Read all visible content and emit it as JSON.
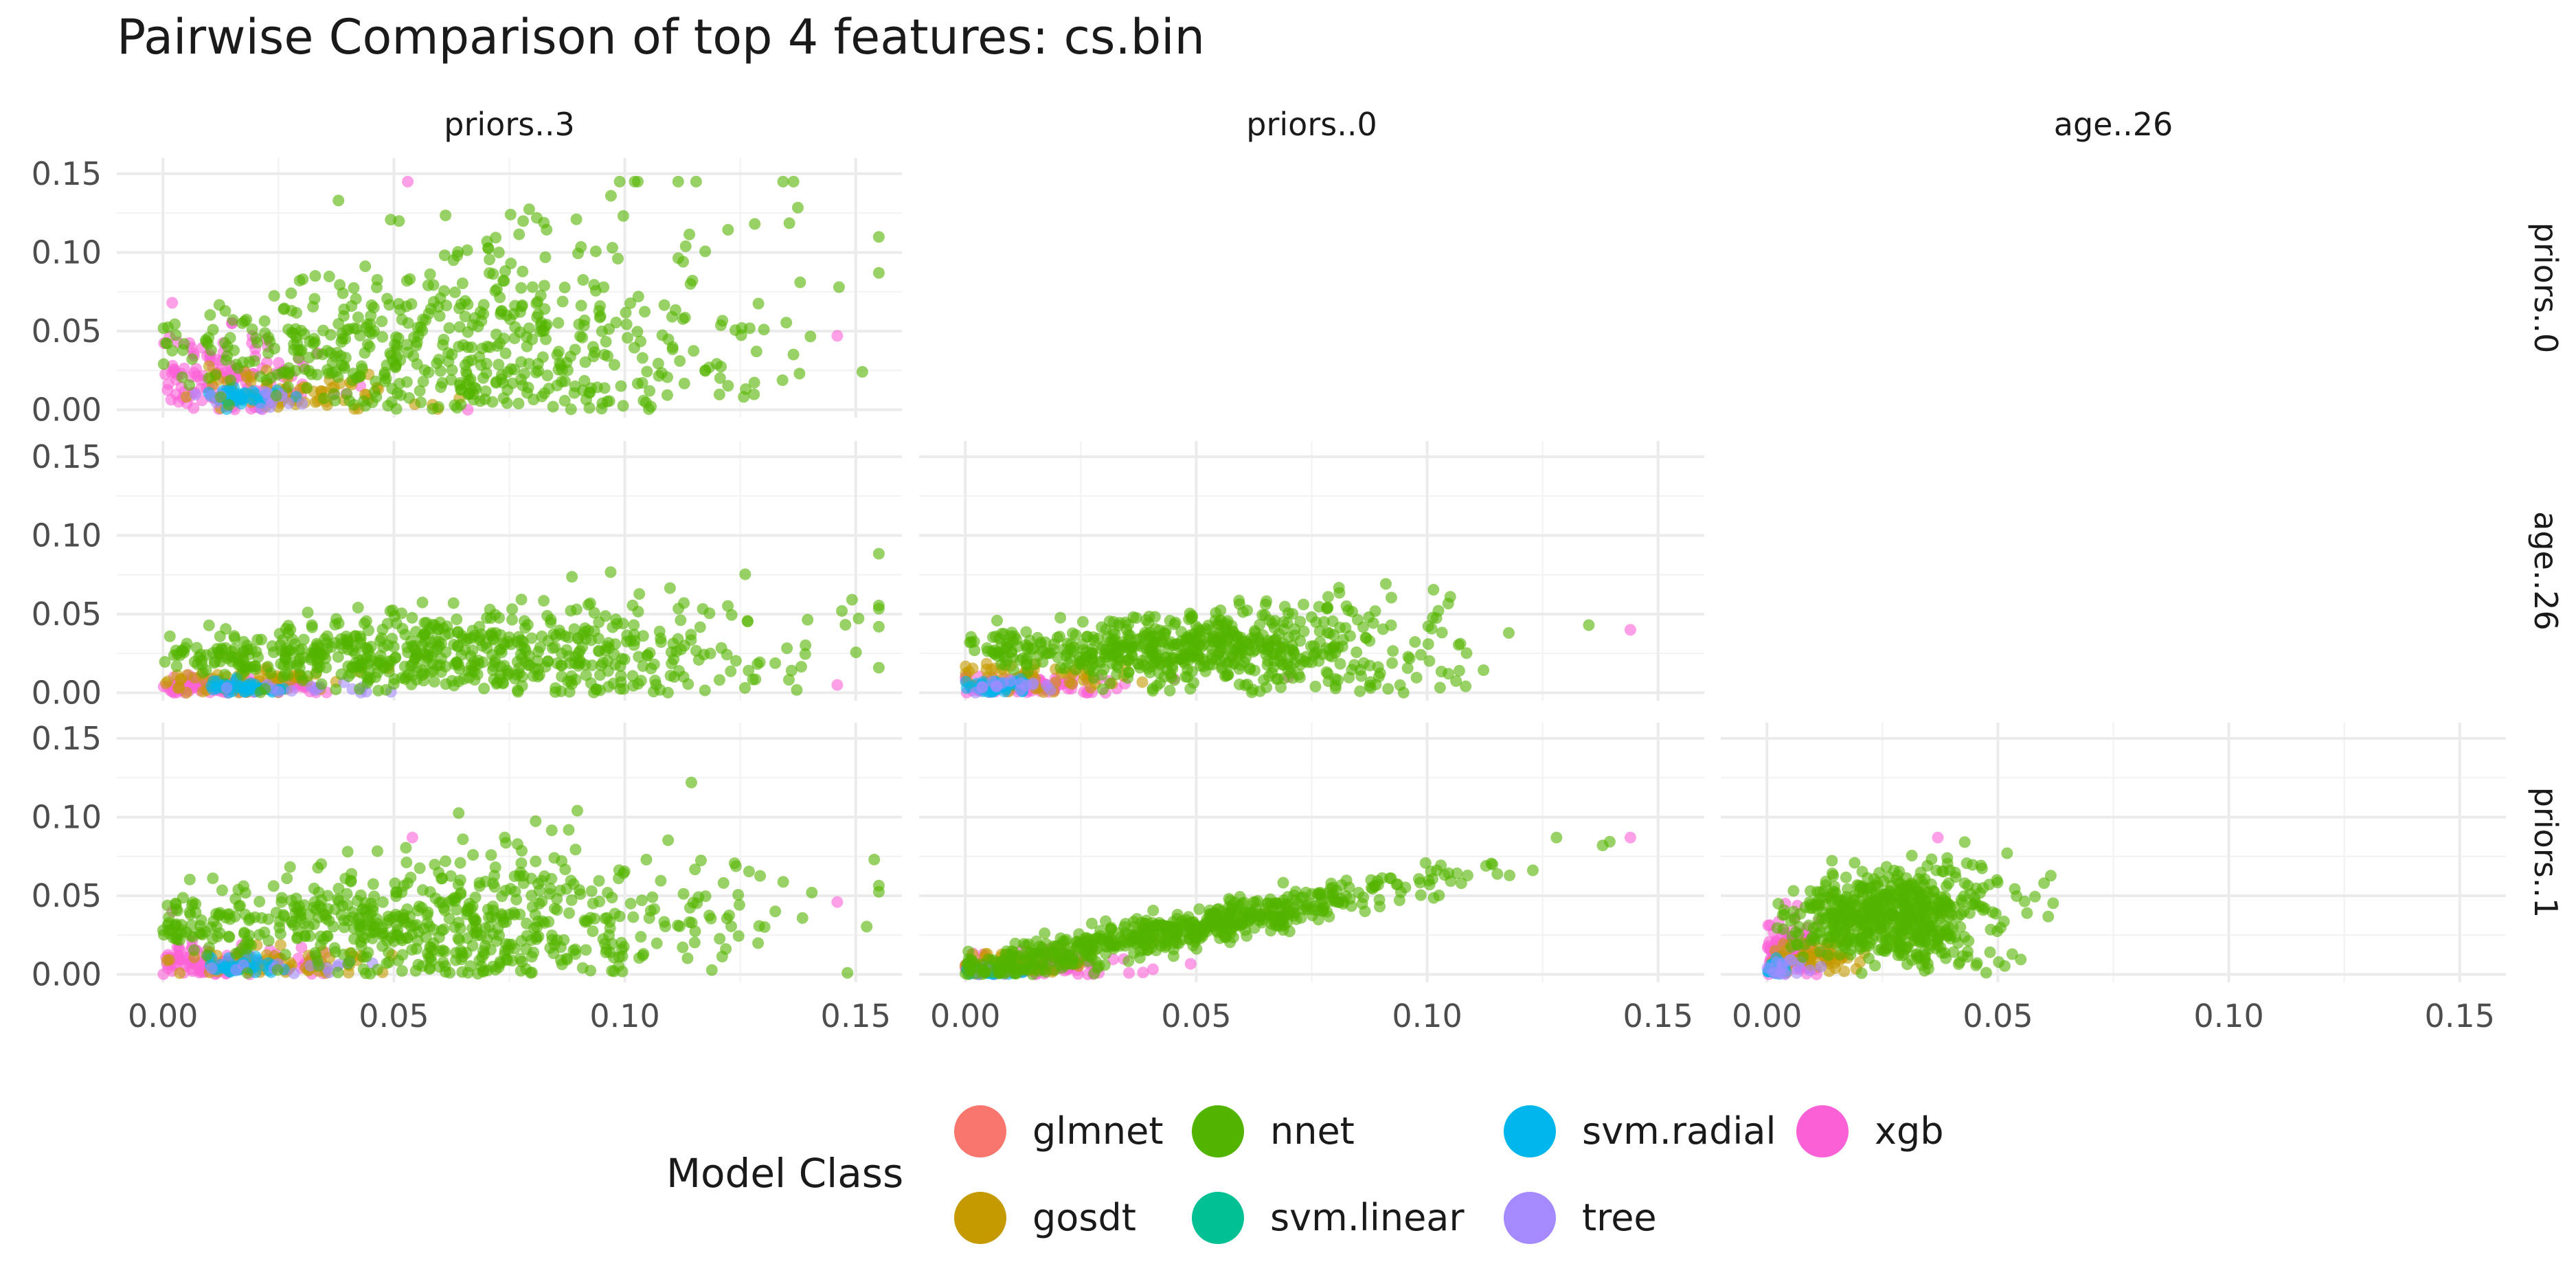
{
  "chart_data": {
    "type": "scatter",
    "title": "Pairwise Comparison of top 4 features: cs.bin",
    "xlabel": "",
    "ylabel": "",
    "layout": "lower-triangular facet grid",
    "column_strips": [
      "priors..3",
      "priors..0",
      "age..26"
    ],
    "row_strips": [
      "priors..0",
      "age..26",
      "priors..1"
    ],
    "xlim": [
      -0.01,
      0.16
    ],
    "ylim": [
      -0.005,
      0.16
    ],
    "x_ticks": [
      0.0,
      0.05,
      0.1,
      0.15
    ],
    "x_tick_labels": [
      "0.00",
      "0.05",
      "0.10",
      "0.15"
    ],
    "y_ticks": [
      0.0,
      0.05,
      0.1,
      0.15
    ],
    "y_tick_labels": [
      "0.00",
      "0.05",
      "0.10",
      "0.15"
    ],
    "grid": true,
    "legend": {
      "title": "Model Class",
      "position": "bottom",
      "items": [
        {
          "label": "glmnet",
          "color": "#F8766D"
        },
        {
          "label": "nnet",
          "color": "#53B400"
        },
        {
          "label": "svm.radial",
          "color": "#00B6EB"
        },
        {
          "label": "xgb",
          "color": "#FB61D7"
        },
        {
          "label": "gosdt",
          "color": "#C49A00"
        },
        {
          "label": "svm.linear",
          "color": "#00C094"
        },
        {
          "label": "tree",
          "color": "#A58AFF"
        }
      ]
    },
    "panels": [
      {
        "row": "priors..0",
        "col": "priors..3",
        "series": [
          {
            "name": "xgb",
            "color": "#FB61D7",
            "cx": 0.015,
            "sx": 0.01,
            "cy": 0.02,
            "sy": 0.013,
            "n": 120,
            "outliers": [
              [
                0.053,
                0.145
              ],
              [
                0.002,
                0.068
              ],
              [
                0.146,
                0.047
              ],
              [
                0.066,
                0.0
              ]
            ]
          },
          {
            "name": "gosdt",
            "color": "#C49A00",
            "cx": 0.03,
            "sx": 0.012,
            "cy": 0.012,
            "sy": 0.008,
            "n": 70,
            "outliers": []
          },
          {
            "name": "svm.radial",
            "color": "#00B6EB",
            "cx": 0.017,
            "sx": 0.004,
            "cy": 0.009,
            "sy": 0.003,
            "n": 40,
            "outliers": []
          },
          {
            "name": "tree",
            "color": "#A58AFF",
            "cx": 0.02,
            "sx": 0.006,
            "cy": 0.008,
            "sy": 0.004,
            "n": 15,
            "outliers": []
          },
          {
            "name": "nnet",
            "color": "#53B400",
            "cx": 0.065,
            "sx": 0.033,
            "cy": 0.04,
            "sy": 0.026,
            "n": 560,
            "outliers": [
              [
                0.155,
                0.087
              ],
              [
                0.038,
                0.133
              ],
              [
                0.097,
                0.136
              ]
            ]
          }
        ]
      },
      {
        "row": "age..26",
        "col": "priors..3",
        "series": [
          {
            "name": "xgb",
            "color": "#FB61D7",
            "cx": 0.012,
            "sx": 0.012,
            "cy": 0.004,
            "sy": 0.003,
            "n": 100,
            "outliers": [
              [
                0.146,
                0.005
              ]
            ]
          },
          {
            "name": "gosdt",
            "color": "#C49A00",
            "cx": 0.02,
            "sx": 0.013,
            "cy": 0.007,
            "sy": 0.004,
            "n": 60,
            "outliers": []
          },
          {
            "name": "svm.radial",
            "color": "#00B6EB",
            "cx": 0.017,
            "sx": 0.004,
            "cy": 0.003,
            "sy": 0.002,
            "n": 40,
            "outliers": []
          },
          {
            "name": "tree",
            "color": "#A58AFF",
            "cx": 0.035,
            "sx": 0.012,
            "cy": 0.003,
            "sy": 0.002,
            "n": 15,
            "outliers": []
          },
          {
            "name": "nnet",
            "color": "#53B400",
            "cx": 0.065,
            "sx": 0.033,
            "cy": 0.025,
            "sy": 0.011,
            "n": 620,
            "outliers": [
              [
                0.155,
                0.042
              ],
              [
                0.147,
                0.052
              ]
            ]
          }
        ]
      },
      {
        "row": "priors..1",
        "col": "priors..3",
        "series": [
          {
            "name": "xgb",
            "color": "#FB61D7",
            "cx": 0.012,
            "sx": 0.012,
            "cy": 0.008,
            "sy": 0.006,
            "n": 100,
            "outliers": [
              [
                0.002,
                0.04
              ],
              [
                0.054,
                0.087
              ],
              [
                0.146,
                0.046
              ]
            ]
          },
          {
            "name": "gosdt",
            "color": "#C49A00",
            "cx": 0.022,
            "sx": 0.013,
            "cy": 0.007,
            "sy": 0.005,
            "n": 60,
            "outliers": []
          },
          {
            "name": "svm.radial",
            "color": "#00B6EB",
            "cx": 0.017,
            "sx": 0.004,
            "cy": 0.005,
            "sy": 0.003,
            "n": 40,
            "outliers": []
          },
          {
            "name": "tree",
            "color": "#A58AFF",
            "cx": 0.03,
            "sx": 0.01,
            "cy": 0.004,
            "sy": 0.003,
            "n": 15,
            "outliers": []
          },
          {
            "name": "nnet",
            "color": "#53B400",
            "cx": 0.06,
            "sx": 0.032,
            "cy": 0.033,
            "sy": 0.018,
            "n": 620,
            "outliers": [
              [
                0.154,
                0.073
              ],
              [
                0.074,
                0.087
              ],
              [
                0.04,
                0.078
              ]
            ]
          }
        ]
      },
      {
        "row": "age..26",
        "col": "priors..0",
        "series": [
          {
            "name": "xgb",
            "color": "#FB61D7",
            "cx": 0.012,
            "sx": 0.012,
            "cy": 0.005,
            "sy": 0.004,
            "n": 100,
            "outliers": [
              [
                0.144,
                0.04
              ],
              [
                0.07,
                0.01
              ]
            ]
          },
          {
            "name": "gosdt",
            "color": "#C49A00",
            "cx": 0.012,
            "sx": 0.01,
            "cy": 0.01,
            "sy": 0.005,
            "n": 60,
            "outliers": []
          },
          {
            "name": "svm.radial",
            "color": "#00B6EB",
            "cx": 0.007,
            "sx": 0.003,
            "cy": 0.004,
            "sy": 0.002,
            "n": 40,
            "outliers": []
          },
          {
            "name": "tree",
            "color": "#A58AFF",
            "cx": 0.01,
            "sx": 0.005,
            "cy": 0.004,
            "sy": 0.002,
            "n": 15,
            "outliers": []
          },
          {
            "name": "nnet",
            "color": "#53B400",
            "cx": 0.05,
            "sx": 0.025,
            "cy": 0.027,
            "sy": 0.011,
            "n": 620,
            "outliers": [
              [
                0.105,
                0.061
              ],
              [
                0.135,
                0.043
              ]
            ]
          }
        ]
      },
      {
        "row": "priors..1",
        "col": "priors..0",
        "series": [
          {
            "name": "xgb",
            "color": "#FB61D7",
            "cx": 0.012,
            "sx": 0.012,
            "cy": 0.005,
            "sy": 0.004,
            "n": 100,
            "outliers": [
              [
                0.144,
                0.087
              ]
            ]
          },
          {
            "name": "gosdt",
            "color": "#C49A00",
            "cx": 0.01,
            "sx": 0.008,
            "cy": 0.006,
            "sy": 0.004,
            "n": 60,
            "outliers": []
          },
          {
            "name": "svm.radial",
            "color": "#00B6EB",
            "cx": 0.005,
            "sx": 0.003,
            "cy": 0.002,
            "sy": 0.001,
            "n": 40,
            "outliers": []
          },
          {
            "name": "tree",
            "color": "#A58AFF",
            "cx": 0.008,
            "sx": 0.004,
            "cy": 0.003,
            "sy": 0.002,
            "n": 15,
            "outliers": []
          },
          {
            "name": "nnet",
            "color": "#53B400",
            "cx": 0.045,
            "sx": 0.028,
            "cy": "diag",
            "slope": 0.6,
            "sy": 0.006,
            "n": 620,
            "outliers": [
              [
                0.128,
                0.087
              ],
              [
                0.138,
                0.082
              ]
            ]
          }
        ]
      },
      {
        "row": "priors..1",
        "col": "age..26",
        "series": [
          {
            "name": "xgb",
            "color": "#FB61D7",
            "cx": 0.005,
            "sx": 0.004,
            "cy": 0.012,
            "sy": 0.01,
            "n": 100,
            "outliers": [
              [
                0.004,
                0.045
              ],
              [
                0.037,
                0.087
              ]
            ]
          },
          {
            "name": "gosdt",
            "color": "#C49A00",
            "cx": 0.01,
            "sx": 0.005,
            "cy": 0.01,
            "sy": 0.005,
            "n": 60,
            "outliers": []
          },
          {
            "name": "svm.radial",
            "color": "#00B6EB",
            "cx": 0.002,
            "sx": 0.001,
            "cy": 0.004,
            "sy": 0.003,
            "n": 40,
            "outliers": []
          },
          {
            "name": "tree",
            "color": "#A58AFF",
            "cx": 0.005,
            "sx": 0.003,
            "cy": 0.005,
            "sy": 0.003,
            "n": 15,
            "outliers": []
          },
          {
            "name": "nnet",
            "color": "#53B400",
            "cx": 0.027,
            "sx": 0.011,
            "cy": 0.038,
            "sy": 0.017,
            "n": 620,
            "outliers": [
              [
                0.06,
                0.058
              ],
              [
                0.052,
                0.077
              ]
            ]
          }
        ]
      }
    ]
  }
}
